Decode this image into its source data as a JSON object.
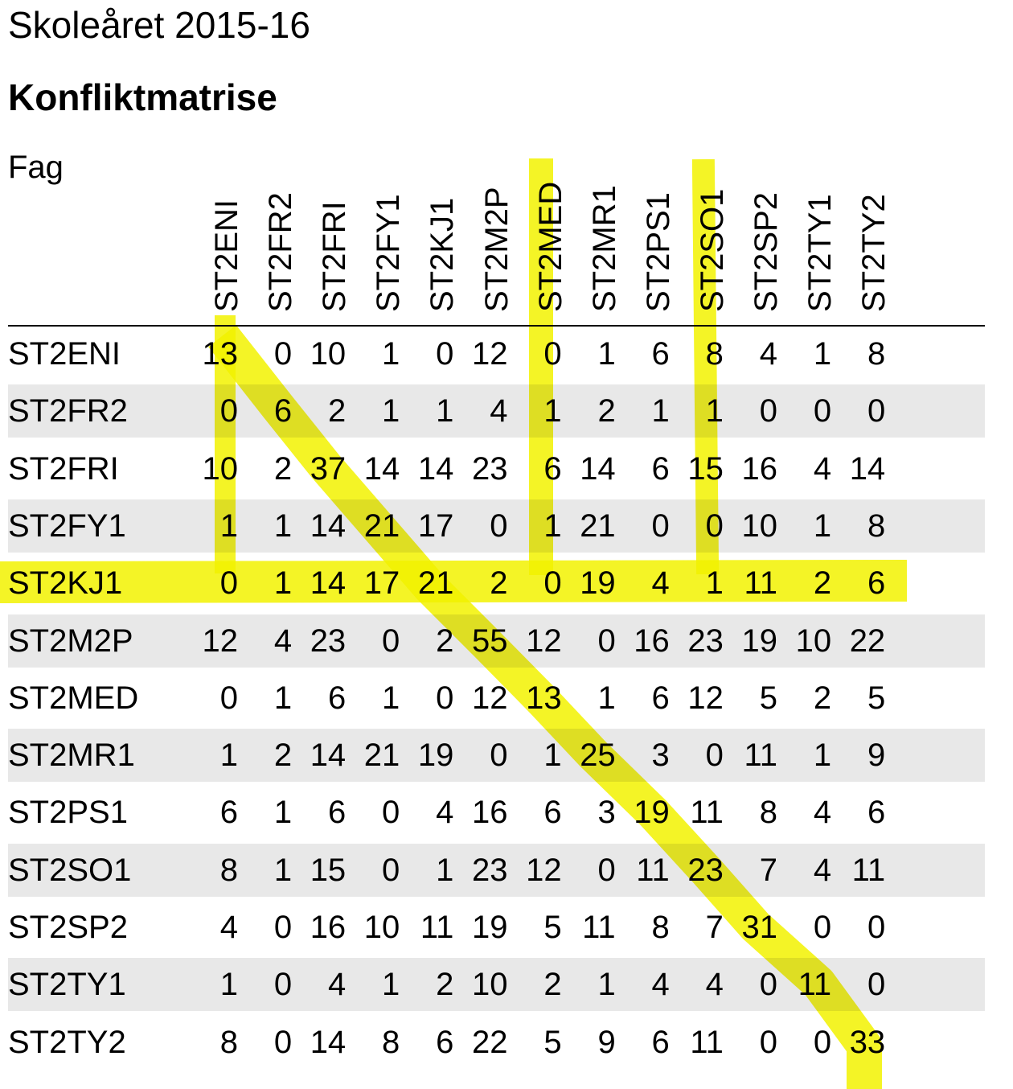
{
  "heading": "Skoleåret 2015-16",
  "title": "Konfliktmatrise",
  "fag_label": "Fag",
  "columns": [
    "ST2ENI",
    "ST2FR2",
    "ST2FRI",
    "ST2FY1",
    "ST2KJ1",
    "ST2M2P",
    "ST2MED",
    "ST2MR1",
    "ST2PS1",
    "ST2SO1",
    "ST2SP2",
    "ST2TY1",
    "ST2TY2"
  ],
  "rows": [
    {
      "label": "ST2ENI",
      "values": [
        "13",
        "0",
        "10",
        "1",
        "0",
        "12",
        "0",
        "1",
        "6",
        "8",
        "4",
        "1",
        "8"
      ]
    },
    {
      "label": "ST2FR2",
      "values": [
        "0",
        "6",
        "2",
        "1",
        "1",
        "4",
        "1",
        "2",
        "1",
        "1",
        "0",
        "0",
        "0"
      ]
    },
    {
      "label": "ST2FRI",
      "values": [
        "10",
        "2",
        "37",
        "14",
        "14",
        "23",
        "6",
        "14",
        "6",
        "15",
        "16",
        "4",
        "14"
      ]
    },
    {
      "label": "ST2FY1",
      "values": [
        "1",
        "1",
        "14",
        "21",
        "17",
        "0",
        "1",
        "21",
        "0",
        "0",
        "10",
        "1",
        "8"
      ]
    },
    {
      "label": "ST2KJ1",
      "values": [
        "0",
        "1",
        "14",
        "17",
        "21",
        "2",
        "0",
        "19",
        "4",
        "1",
        "11",
        "2",
        "6"
      ]
    },
    {
      "label": "ST2M2P",
      "values": [
        "12",
        "4",
        "23",
        "0",
        "2",
        "55",
        "12",
        "0",
        "16",
        "23",
        "19",
        "10",
        "22"
      ]
    },
    {
      "label": "ST2MED",
      "values": [
        "0",
        "1",
        "6",
        "1",
        "0",
        "12",
        "13",
        "1",
        "6",
        "12",
        "5",
        "2",
        "5"
      ]
    },
    {
      "label": "ST2MR1",
      "values": [
        "1",
        "2",
        "14",
        "21",
        "19",
        "0",
        "1",
        "25",
        "3",
        "0",
        "11",
        "1",
        "9"
      ]
    },
    {
      "label": "ST2PS1",
      "values": [
        "6",
        "1",
        "6",
        "0",
        "4",
        "16",
        "6",
        "3",
        "19",
        "11",
        "8",
        "4",
        "6"
      ]
    },
    {
      "label": "ST2SO1",
      "values": [
        "8",
        "1",
        "15",
        "0",
        "1",
        "23",
        "12",
        "0",
        "11",
        "23",
        "7",
        "4",
        "11"
      ]
    },
    {
      "label": "ST2SP2",
      "values": [
        "4",
        "0",
        "16",
        "10",
        "11",
        "19",
        "5",
        "11",
        "8",
        "7",
        "31",
        "0",
        "0"
      ]
    },
    {
      "label": "ST2TY1",
      "values": [
        "1",
        "0",
        "4",
        "1",
        "2",
        "10",
        "2",
        "1",
        "4",
        "4",
        "0",
        "11",
        "0"
      ]
    },
    {
      "label": "ST2TY2",
      "values": [
        "8",
        "0",
        "14",
        "8",
        "6",
        "22",
        "5",
        "9",
        "6",
        "11",
        "0",
        "0",
        "33"
      ]
    }
  ],
  "colors": {
    "highlighter": "#f2f200",
    "row_shading": "#e8e8e8"
  }
}
